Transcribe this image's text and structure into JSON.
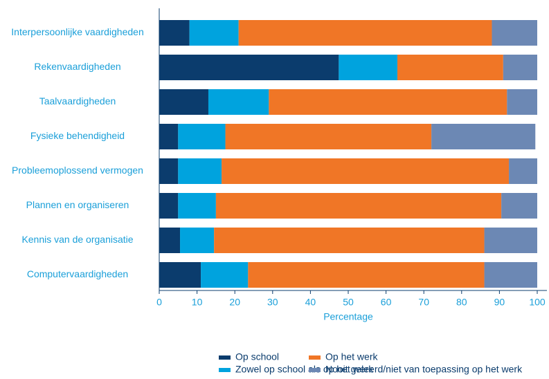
{
  "chart_data": {
    "type": "stacked_barh",
    "categories": [
      "Interpersoonlijke vaardigheden",
      "Rekenvaardigheden",
      "Taalvaardigheden",
      "Fysieke behendigheid",
      "Probleemoplossend vermogen",
      "Plannen en organiseren",
      "Kennis van de organisatie",
      "Computervaardigheden"
    ],
    "series": [
      {
        "name": "Op school",
        "color": "#0b3c6d",
        "values": [
          8,
          47.5,
          13,
          5,
          5,
          5,
          5.5,
          11
        ]
      },
      {
        "name": "Zowel op school als op het werk",
        "color": "#00a3de",
        "values": [
          13,
          15.5,
          16,
          12.5,
          11.5,
          10,
          9,
          12.5
        ]
      },
      {
        "name": "Op het werk",
        "color": "#f07626",
        "values": [
          67,
          28,
          63,
          54.5,
          76,
          75.5,
          71.5,
          62.5
        ]
      },
      {
        "name": "Nooit geleerd/niet van toepassing op het werk",
        "color": "#6c88b4",
        "values": [
          12,
          9,
          8,
          27.5,
          7.5,
          9.5,
          14,
          14
        ]
      }
    ],
    "x_label": "Percentage",
    "xlim": [
      0,
      100
    ],
    "xticks": [
      0,
      10,
      20,
      30,
      40,
      50,
      60,
      70,
      80,
      90,
      100
    ]
  }
}
